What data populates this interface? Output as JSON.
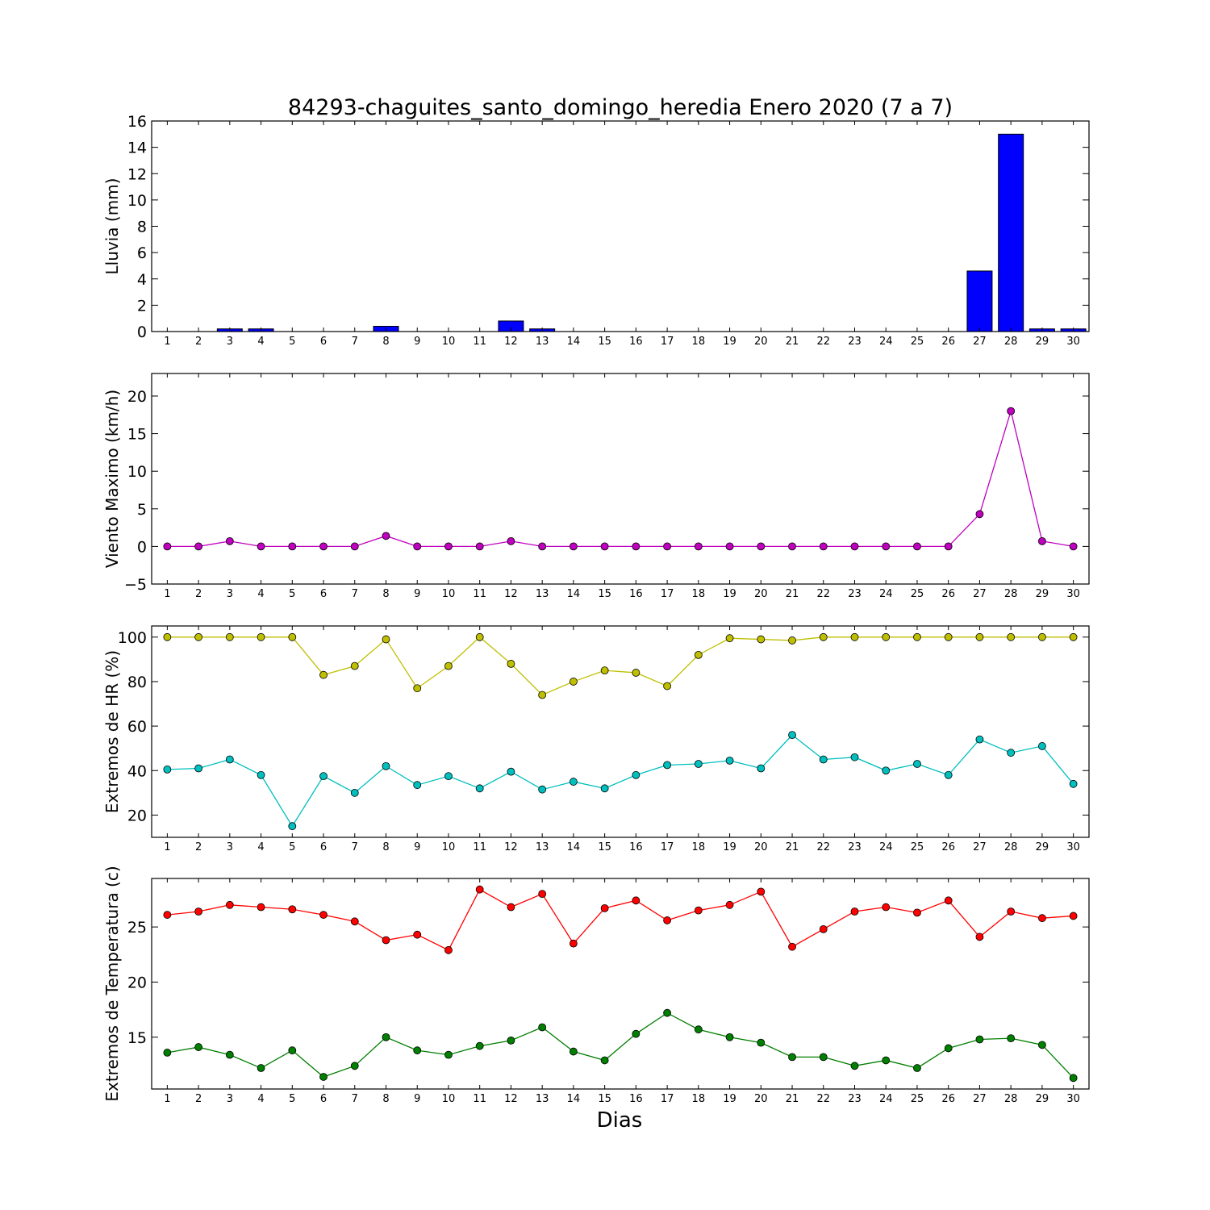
{
  "figure_title": "84293-chaguites_santo_domingo_heredia Enero 2020  (7 a 7)",
  "xlabel": "Dias",
  "days": [
    1,
    2,
    3,
    4,
    5,
    6,
    7,
    8,
    9,
    10,
    11,
    12,
    13,
    14,
    15,
    16,
    17,
    18,
    19,
    20,
    21,
    22,
    23,
    24,
    25,
    26,
    27,
    28,
    29,
    30
  ],
  "chart_data": [
    {
      "type": "bar",
      "ylabel": "Lluvia (mm)",
      "ylim": [
        0,
        16
      ],
      "yticks": [
        0,
        2,
        4,
        6,
        8,
        10,
        12,
        14,
        16
      ],
      "series": [
        {
          "color": "#0000ff",
          "values": [
            0,
            0,
            0.2,
            0.2,
            0,
            0,
            0,
            0.4,
            0,
            0,
            0,
            0.8,
            0.2,
            0,
            0,
            0,
            0,
            0,
            0,
            0,
            0,
            0,
            0,
            0,
            0,
            0,
            4.6,
            15,
            0.2,
            0.2
          ]
        }
      ]
    },
    {
      "type": "line",
      "ylabel": "Viento Maximo (km/h)",
      "ylim": [
        -5,
        23
      ],
      "yticks": [
        -5,
        0,
        5,
        10,
        15,
        20
      ],
      "ytick_labels": [
        "−5",
        "0",
        "5",
        "10",
        "15",
        "20"
      ],
      "series": [
        {
          "color": "#bf00bf",
          "values": [
            0,
            0,
            0.7,
            0,
            0,
            0,
            0,
            1.4,
            0,
            0,
            0,
            0.7,
            0,
            0,
            0,
            0,
            0,
            0,
            0,
            0,
            0,
            0,
            0,
            0,
            0,
            0,
            4.3,
            18,
            0.7,
            0
          ]
        }
      ]
    },
    {
      "type": "line",
      "ylabel": "Extremos de HR (%)",
      "ylim": [
        10,
        105
      ],
      "yticks": [
        20,
        40,
        60,
        80,
        100
      ],
      "series": [
        {
          "color": "#bfbf00",
          "values": [
            100,
            100,
            100,
            100,
            100,
            83,
            87,
            99,
            77,
            87,
            100,
            88,
            74,
            80,
            85,
            84,
            78,
            92,
            99.5,
            99,
            98.5,
            100,
            100,
            100,
            100,
            100,
            100,
            100,
            100,
            100
          ]
        },
        {
          "color": "#00bfbf",
          "values": [
            40.5,
            41,
            45,
            38,
            15,
            37.5,
            30,
            42,
            33.5,
            37.5,
            32,
            39.5,
            31.5,
            35,
            32,
            38,
            42.5,
            43,
            44.5,
            41,
            56,
            45,
            46,
            40,
            43,
            38,
            54,
            48,
            51,
            34
          ]
        }
      ]
    },
    {
      "type": "line",
      "ylabel": "Extremos de Temperatura (c)",
      "ylim": [
        10.3,
        29.4
      ],
      "yticks": [
        15,
        20,
        25
      ],
      "series": [
        {
          "color": "#ff0000",
          "values": [
            26.1,
            26.4,
            27,
            26.8,
            26.6,
            26.1,
            25.5,
            23.8,
            24.3,
            22.9,
            28.4,
            26.8,
            28,
            23.5,
            26.7,
            27.4,
            25.6,
            26.5,
            27,
            28.2,
            23.2,
            24.8,
            26.4,
            26.8,
            26.3,
            27.4,
            24.1,
            26.4,
            25.8,
            26
          ]
        },
        {
          "color": "#007f00",
          "values": [
            13.6,
            14.1,
            13.4,
            12.2,
            13.8,
            11.4,
            12.4,
            15,
            13.8,
            13.4,
            14.2,
            14.7,
            15.9,
            13.7,
            12.9,
            15.3,
            17.2,
            15.7,
            15,
            14.5,
            13.2,
            13.2,
            12.4,
            12.9,
            12.2,
            14,
            14.8,
            14.9,
            14.3,
            11.3
          ]
        }
      ]
    }
  ]
}
